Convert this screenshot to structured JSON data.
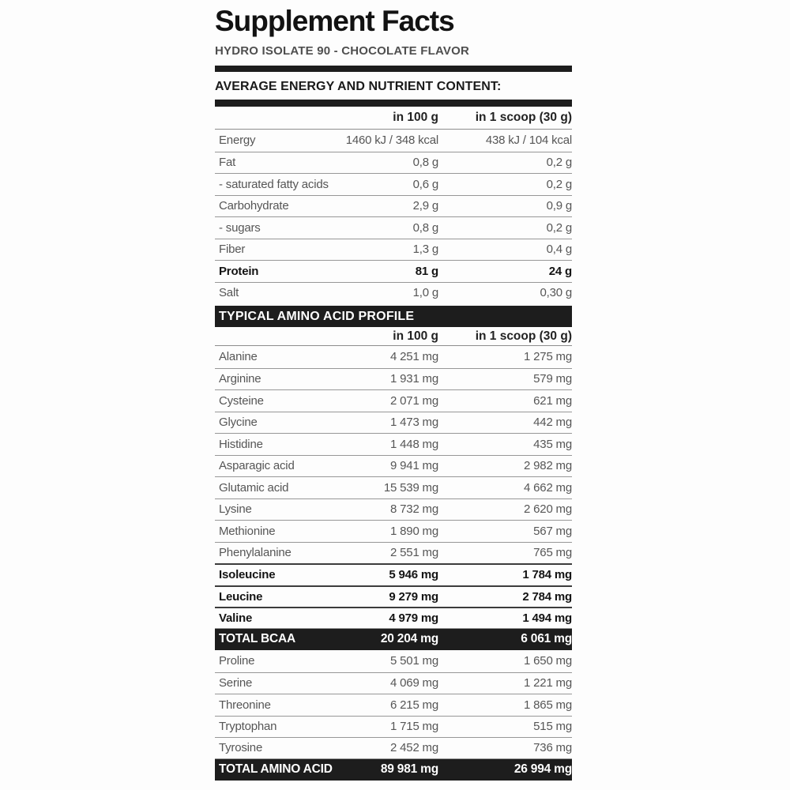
{
  "label": {
    "title": "Supplement Facts",
    "subtitle": "HYDRO ISOLATE 90 - CHOCOLATE FLAVOR"
  },
  "nutrition": {
    "section_title": "AVERAGE ENERGY AND NUTRIENT CONTENT:",
    "col_headers": [
      "in 100 g",
      "in 1 scoop (30 g)"
    ],
    "rows": [
      {
        "name": "Energy",
        "per_100g": "1460 kJ / 348 kcal",
        "per_scoop": "438 kJ / 104 kcal",
        "style": "regular"
      },
      {
        "name": "Fat",
        "per_100g": "0,8 g",
        "per_scoop": "0,2 g",
        "style": "regular"
      },
      {
        "name": "- saturated fatty acids",
        "per_100g": "0,6 g",
        "per_scoop": "0,2 g",
        "style": "regular"
      },
      {
        "name": "Carbohydrate",
        "per_100g": "2,9 g",
        "per_scoop": "0,9 g",
        "style": "regular"
      },
      {
        "name": "- sugars",
        "per_100g": "0,8 g",
        "per_scoop": "0,2 g",
        "style": "regular"
      },
      {
        "name": "Fiber",
        "per_100g": "1,3 g",
        "per_scoop": "0,4 g",
        "style": "regular"
      },
      {
        "name": "Protein",
        "per_100g": "81 g",
        "per_scoop": "24 g",
        "style": "bold",
        "topline": "normal"
      },
      {
        "name": "Salt",
        "per_100g": "1,0 g",
        "per_scoop": "0,30 g",
        "style": "regular"
      }
    ]
  },
  "amino_acids": {
    "section_title": "TYPICAL AMINO ACID PROFILE",
    "col_headers": [
      "in 100 g",
      "in 1 scoop (30 g)"
    ],
    "rows": [
      {
        "name": "Alanine",
        "per_100g": "4 251 mg",
        "per_scoop": "1 275 mg",
        "style": "regular"
      },
      {
        "name": "Arginine",
        "per_100g": "1 931 mg",
        "per_scoop": "579 mg",
        "style": "regular"
      },
      {
        "name": "Cysteine",
        "per_100g": "2 071 mg",
        "per_scoop": "621 mg",
        "style": "regular"
      },
      {
        "name": "Glycine",
        "per_100g": "1 473 mg",
        "per_scoop": "442 mg",
        "style": "regular"
      },
      {
        "name": "Histidine",
        "per_100g": "1 448 mg",
        "per_scoop": "435 mg",
        "style": "regular"
      },
      {
        "name": "Asparagic acid",
        "per_100g": "9 941 mg",
        "per_scoop": "2 982 mg",
        "style": "regular"
      },
      {
        "name": "Glutamic acid",
        "per_100g": "15 539 mg",
        "per_scoop": "4 662 mg",
        "style": "regular"
      },
      {
        "name": "Lysine",
        "per_100g": "8 732 mg",
        "per_scoop": "2 620 mg",
        "style": "regular"
      },
      {
        "name": "Methionine",
        "per_100g": "1 890 mg",
        "per_scoop": "567 mg",
        "style": "regular"
      },
      {
        "name": "Phenylalanine",
        "per_100g": "2 551 mg",
        "per_scoop": "765 mg",
        "style": "regular"
      },
      {
        "name": "Isoleucine",
        "per_100g": "5 946 mg",
        "per_scoop": "1 784 mg",
        "style": "bold",
        "topline": "strong"
      },
      {
        "name": "Leucine",
        "per_100g": "9 279 mg",
        "per_scoop": "2 784 mg",
        "style": "bold",
        "topline": "strong"
      },
      {
        "name": "Valine",
        "per_100g": "4 979 mg",
        "per_scoop": "1 494 mg",
        "style": "bold",
        "topline": "strong"
      },
      {
        "name": "TOTAL BCAA",
        "per_100g": "20 204 mg",
        "per_scoop": "6 061 mg",
        "style": "total"
      },
      {
        "name": "Proline",
        "per_100g": "5 501 mg",
        "per_scoop": "1 650 mg",
        "style": "regular"
      },
      {
        "name": "Serine",
        "per_100g": "4 069 mg",
        "per_scoop": "1 221 mg",
        "style": "regular"
      },
      {
        "name": "Threonine",
        "per_100g": "6 215 mg",
        "per_scoop": "1 865 mg",
        "style": "regular"
      },
      {
        "name": "Tryptophan",
        "per_100g": "1 715 mg",
        "per_scoop": "515 mg",
        "style": "regular"
      },
      {
        "name": "Tyrosine",
        "per_100g": "2 452 mg",
        "per_scoop": "736 mg",
        "style": "regular"
      },
      {
        "name": "TOTAL AMINO ACID",
        "per_100g": "89 981 mg",
        "per_scoop": "26 994 mg",
        "style": "total"
      }
    ]
  },
  "colors": {
    "banner_bg": "#1d1d1d",
    "text_regular": "#565656",
    "text_strong": "#141414",
    "row_line": "#979797",
    "background": "#fdfdfd"
  }
}
